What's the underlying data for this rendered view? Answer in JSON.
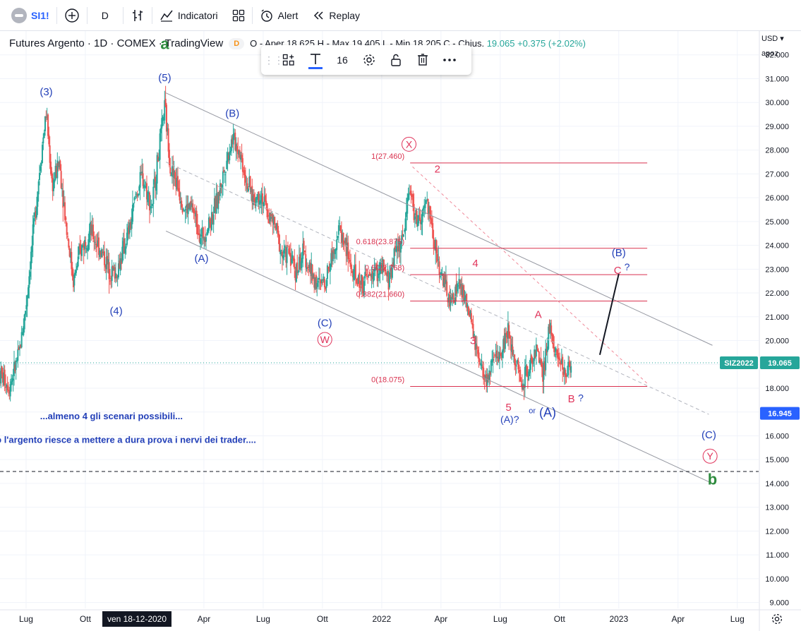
{
  "toolbar": {
    "symbol": "SI1!",
    "interval": "D",
    "indicators_label": "Indicatori",
    "alert_label": "Alert",
    "replay_label": "Replay"
  },
  "legend": {
    "title": "Futures Argento · 1D · COMEX · TradingView",
    "badge": "D",
    "ohlc": "O - Aper 18.625  H - Max 19.405  L - Min 18.205  C - Chius.",
    "close": "19.065",
    "change": "+0.375 (+2.02%)"
  },
  "drawing_toolbar": {
    "font_size": "16"
  },
  "price_axis": {
    "currency": "USD",
    "autoscale": "apoz"
  },
  "time_axis": {
    "crosshair_date": "ven 18-12-2020"
  },
  "colors": {
    "up": "#26a69a",
    "down": "#ef5350",
    "wave_blue": "#2340b8",
    "wave_red": "#e0335a",
    "wave_green": "#2e8b3e",
    "fib": "#d9324f"
  },
  "chart_data": {
    "type": "candlestick",
    "symbol": "SIZ2022",
    "interval": "1D",
    "ylim": [
      8.75,
      33.0
    ],
    "y_ticks": [
      9,
      10,
      11,
      12,
      13,
      14,
      15,
      16,
      17,
      18,
      19,
      20,
      21,
      22,
      23,
      24,
      25,
      26,
      27,
      28,
      29,
      30,
      31,
      32
    ],
    "y_tick_labels": [
      "9.000",
      "10.000",
      "11.000",
      "12.000",
      "13.000",
      "14.000",
      "15.000",
      "16.000",
      "17.000",
      "18.000",
      "19.000",
      "20.000",
      "21.000",
      "22.000",
      "23.000",
      "24.000",
      "25.000",
      "26.000",
      "27.000",
      "28.000",
      "29.000",
      "30.000",
      "31.000",
      "32.000"
    ],
    "x_ticks": [
      {
        "label": "Lug",
        "x": 2020.5
      },
      {
        "label": "Ott",
        "x": 2020.75
      },
      {
        "label": "Apr",
        "x": 2021.25
      },
      {
        "label": "Lug",
        "x": 2021.5
      },
      {
        "label": "Ott",
        "x": 2021.75
      },
      {
        "label": "2022",
        "x": 2022.0
      },
      {
        "label": "Apr",
        "x": 2022.25
      },
      {
        "label": "Lug",
        "x": 2022.5
      },
      {
        "label": "Ott",
        "x": 2022.75
      },
      {
        "label": "2023",
        "x": 2023.0
      },
      {
        "label": "Apr",
        "x": 2023.25
      },
      {
        "label": "Lug",
        "x": 2023.5
      }
    ],
    "xlim": [
      2020.39,
      2023.59
    ],
    "price_path": [
      [
        2020.39,
        18.6
      ],
      [
        2020.43,
        18.1
      ],
      [
        2020.47,
        19.4
      ],
      [
        2020.5,
        21.5
      ],
      [
        2020.53,
        24.5
      ],
      [
        2020.56,
        27.5
      ],
      [
        2020.585,
        29.6
      ],
      [
        2020.61,
        26.5
      ],
      [
        2020.64,
        27.5
      ],
      [
        2020.67,
        24.8
      ],
      [
        2020.7,
        22.5
      ],
      [
        2020.73,
        23.8
      ],
      [
        2020.77,
        24.6
      ],
      [
        2020.81,
        23.9
      ],
      [
        2020.85,
        23.0
      ],
      [
        2020.88,
        22.8
      ],
      [
        2020.91,
        23.8
      ],
      [
        2020.94,
        24.8
      ],
      [
        2020.96,
        26.0
      ],
      [
        2020.99,
        26.9
      ],
      [
        2021.03,
        25.6
      ],
      [
        2021.05,
        27.2
      ],
      [
        2021.085,
        29.8
      ],
      [
        2021.11,
        27.2
      ],
      [
        2021.14,
        26.5
      ],
      [
        2021.17,
        25.5
      ],
      [
        2021.2,
        25.6
      ],
      [
        2021.24,
        24.3
      ],
      [
        2021.28,
        25.1
      ],
      [
        2021.31,
        26.0
      ],
      [
        2021.34,
        27.4
      ],
      [
        2021.37,
        28.5
      ],
      [
        2021.4,
        28.0
      ],
      [
        2021.43,
        26.7
      ],
      [
        2021.46,
        25.9
      ],
      [
        2021.49,
        26.2
      ],
      [
        2021.52,
        25.3
      ],
      [
        2021.55,
        24.8
      ],
      [
        2021.58,
        23.6
      ],
      [
        2021.61,
        23.7
      ],
      [
        2021.64,
        22.9
      ],
      [
        2021.67,
        23.7
      ],
      [
        2021.7,
        22.9
      ],
      [
        2021.73,
        22.3
      ],
      [
        2021.76,
        22.5
      ],
      [
        2021.79,
        23.6
      ],
      [
        2021.82,
        24.7
      ],
      [
        2021.85,
        23.9
      ],
      [
        2021.88,
        22.7
      ],
      [
        2021.91,
        22.4
      ],
      [
        2021.94,
        22.6
      ],
      [
        2021.97,
        22.9
      ],
      [
        2022.0,
        23.0
      ],
      [
        2022.03,
        22.5
      ],
      [
        2022.06,
        23.9
      ],
      [
        2022.09,
        24.2
      ],
      [
        2022.115,
        26.5
      ],
      [
        2022.14,
        25.2
      ],
      [
        2022.165,
        24.9
      ],
      [
        2022.19,
        25.9
      ],
      [
        2022.215,
        24.5
      ],
      [
        2022.24,
        23.2
      ],
      [
        2022.265,
        22.3
      ],
      [
        2022.29,
        21.5
      ],
      [
        2022.32,
        22.4
      ],
      [
        2022.35,
        21.8
      ],
      [
        2022.38,
        20.6
      ],
      [
        2022.41,
        19.0
      ],
      [
        2022.44,
        18.3
      ],
      [
        2022.47,
        19.0
      ],
      [
        2022.5,
        19.5
      ],
      [
        2022.53,
        20.4
      ],
      [
        2022.56,
        19.4
      ],
      [
        2022.59,
        18.2
      ],
      [
        2022.62,
        18.8
      ],
      [
        2022.65,
        19.7
      ],
      [
        2022.68,
        18.4
      ],
      [
        2022.71,
        20.7
      ],
      [
        2022.74,
        19.3
      ],
      [
        2022.77,
        18.6
      ],
      [
        2022.8,
        19.06
      ]
    ],
    "channel_lines": [
      {
        "x1": 2021.09,
        "y1": 30.4,
        "x2": 2023.395,
        "y2": 19.8
      },
      {
        "x1": 2021.09,
        "y1": 24.6,
        "x2": 2023.395,
        "y2": 14.0
      }
    ],
    "mid_line": {
      "x1": 2021.09,
      "y1": 27.5,
      "x2": 2023.38,
      "y2": 16.9
    },
    "fib_levels": [
      {
        "label": "1(27.460)",
        "value": 27.46,
        "x1": 2022.12,
        "x2": 2023.12
      },
      {
        "label": "0.618(23.875)",
        "value": 23.875,
        "x1": 2022.12,
        "x2": 2023.12
      },
      {
        "label": "0.5(22.768)",
        "value": 22.768,
        "x1": 2022.12,
        "x2": 2023.12
      },
      {
        "label": "0.382(21.660)",
        "value": 21.66,
        "x1": 2022.12,
        "x2": 2023.12
      },
      {
        "label": "0(18.075)",
        "value": 18.075,
        "x1": 2022.12,
        "x2": 2023.12
      }
    ],
    "red_dash_lines": [
      {
        "x1": 2022.13,
        "y1": 27.3,
        "x2": 2023.12,
        "y2": 18.2
      }
    ],
    "forecast_line": {
      "x1": 2022.92,
      "y1": 19.4,
      "x2": 2023.0,
      "y2": 22.8
    },
    "horizontal_lines": [
      {
        "value": 19.065,
        "style": "dotted",
        "color": "#26a69a"
      },
      {
        "value": 14.5,
        "style": "dashed",
        "color": "#131722"
      }
    ],
    "price_labels": [
      {
        "text": "SIZ2022",
        "value": 19.065,
        "bg": "#26a69a"
      },
      {
        "text": "19.065",
        "value": 19.065,
        "bg": "#26a69a"
      },
      {
        "text": "16.945",
        "value": 16.945,
        "bg": "#2962ff"
      }
    ],
    "wave_labels": [
      {
        "text": "a",
        "x": 2021.085,
        "y": 32.25,
        "color": "#2e8b3e",
        "size": 22,
        "bold": true
      },
      {
        "text": "(5)",
        "x": 2021.085,
        "y": 30.9,
        "color": "#2340b8",
        "size": 15
      },
      {
        "text": "(3)",
        "x": 2020.585,
        "y": 30.3,
        "color": "#2340b8",
        "size": 15
      },
      {
        "text": "(4)",
        "x": 2020.88,
        "y": 21.1,
        "color": "#2340b8",
        "size": 15
      },
      {
        "text": "(B)",
        "x": 2021.37,
        "y": 29.4,
        "color": "#2340b8",
        "size": 15
      },
      {
        "text": "(A)",
        "x": 2021.24,
        "y": 23.3,
        "color": "#2340b8",
        "size": 15
      },
      {
        "text": "(C)",
        "x": 2021.76,
        "y": 20.6,
        "color": "#2340b8",
        "size": 15
      },
      {
        "text": "W",
        "x": 2021.76,
        "y": 19.9,
        "color": "#e0335a",
        "size": 14,
        "circle": true
      },
      {
        "text": "X",
        "x": 2022.115,
        "y": 28.1,
        "color": "#e0335a",
        "size": 14,
        "circle": true
      },
      {
        "text": "2",
        "x": 2022.235,
        "y": 27.05,
        "color": "#e0335a",
        "size": 15
      },
      {
        "text": "4",
        "x": 2022.395,
        "y": 23.1,
        "color": "#e0335a",
        "size": 15
      },
      {
        "text": "3",
        "x": 2022.385,
        "y": 19.85,
        "color": "#e0335a",
        "size": 15
      },
      {
        "text": "A",
        "x": 2022.66,
        "y": 20.95,
        "color": "#e0335a",
        "size": 15
      },
      {
        "text": "5",
        "x": 2022.535,
        "y": 17.05,
        "color": "#e0335a",
        "size": 15
      },
      {
        "text": "(A)?",
        "x": 2022.54,
        "y": 16.55,
        "color": "#2340b8",
        "size": 14
      },
      {
        "text": "or",
        "x": 2022.635,
        "y": 16.95,
        "color": "#2340b8",
        "size": 11
      },
      {
        "text": "(A)",
        "x": 2022.7,
        "y": 16.8,
        "color": "#2340b8",
        "size": 18
      },
      {
        "text": "B",
        "x": 2022.8,
        "y": 17.4,
        "color": "#e0335a",
        "size": 15
      },
      {
        "text": "?",
        "x": 2022.84,
        "y": 17.45,
        "color": "#2340b8",
        "size": 14
      },
      {
        "text": "(B)",
        "x": 2023.0,
        "y": 23.55,
        "color": "#2340b8",
        "size": 15
      },
      {
        "text": "C",
        "x": 2022.995,
        "y": 22.8,
        "color": "#e0335a",
        "size": 15
      },
      {
        "text": "?",
        "x": 2023.035,
        "y": 22.95,
        "color": "#2340b8",
        "size": 14
      },
      {
        "text": "(C)",
        "x": 2023.38,
        "y": 15.9,
        "color": "#2340b8",
        "size": 15
      },
      {
        "text": "Y",
        "x": 2023.385,
        "y": 15.0,
        "color": "#e0335a",
        "size": 14,
        "circle": true
      },
      {
        "text": "b",
        "x": 2023.395,
        "y": 13.95,
        "color": "#2e8b3e",
        "size": 22,
        "bold": true
      }
    ],
    "annotations": [
      {
        "text": "...almeno 4 gli scenari possibili...",
        "x": 2020.86,
        "y": 16.7,
        "color": "#2340b8"
      },
      {
        "text": "al solito l'argento riesce a mettere a dura prova i nervi dei trader....",
        "x": 2020.86,
        "y": 15.7,
        "color": "#2340b8"
      }
    ]
  }
}
